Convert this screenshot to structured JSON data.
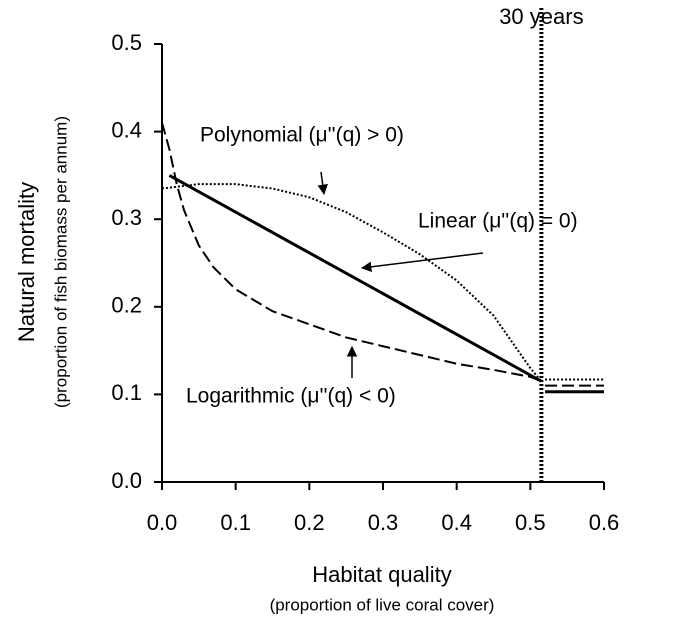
{
  "chart_data": {
    "type": "line",
    "y_label": "Natural mortality",
    "y_sublabel": "(proportion of fish biomass per annum)",
    "x_label": "Habitat quality",
    "x_sublabel": "(proportion of live coral cover)",
    "xlim": [
      0,
      0.6
    ],
    "ylim": [
      0,
      0.5
    ],
    "xticks": [
      {
        "value": 0,
        "label": "0.0"
      },
      0.1,
      0.2,
      0.3,
      0.4,
      0.5,
      0.6
    ],
    "yticks": [
      {
        "value": 0,
        "label": "0.0"
      },
      0.1,
      0.2,
      0.3,
      0.4,
      0.5
    ],
    "vline": {
      "x": 0.515,
      "label": "30 years"
    },
    "annotations": [
      "Polynomial (μ''(q) > 0)",
      "Linear (μ''(q) = 0)",
      "Logarithmic (μ''(q) < 0)"
    ],
    "series": [
      {
        "color": "#000000",
        "style": "solid",
        "x": [
          0.01,
          0.515,
          0.518,
          0.52,
          0.6
        ],
        "values": [
          0.35,
          0.115,
          null,
          0.103,
          0.103
        ]
      },
      {
        "color": "#000000",
        "style": "dashed",
        "x": [
          0.0,
          0.01,
          0.02,
          0.03,
          0.05,
          0.07,
          0.1,
          0.15,
          0.2,
          0.25,
          0.3,
          0.35,
          0.4,
          0.45,
          0.5,
          0.515,
          0.518,
          0.52,
          0.6
        ],
        "values": [
          0.41,
          0.38,
          0.34,
          0.31,
          0.27,
          0.245,
          0.22,
          0.195,
          0.18,
          0.165,
          0.155,
          0.145,
          0.135,
          0.128,
          0.12,
          0.115,
          null,
          0.11,
          0.11
        ]
      },
      {
        "color": "#000000",
        "style": "dotted",
        "x": [
          0.0,
          0.05,
          0.1,
          0.15,
          0.2,
          0.25,
          0.3,
          0.35,
          0.4,
          0.45,
          0.5,
          0.515,
          0.518,
          0.52,
          0.6
        ],
        "values": [
          0.335,
          0.34,
          0.34,
          0.335,
          0.325,
          0.308,
          0.285,
          0.26,
          0.23,
          0.19,
          0.13,
          0.115,
          null,
          0.117,
          0.117
        ]
      }
    ]
  }
}
